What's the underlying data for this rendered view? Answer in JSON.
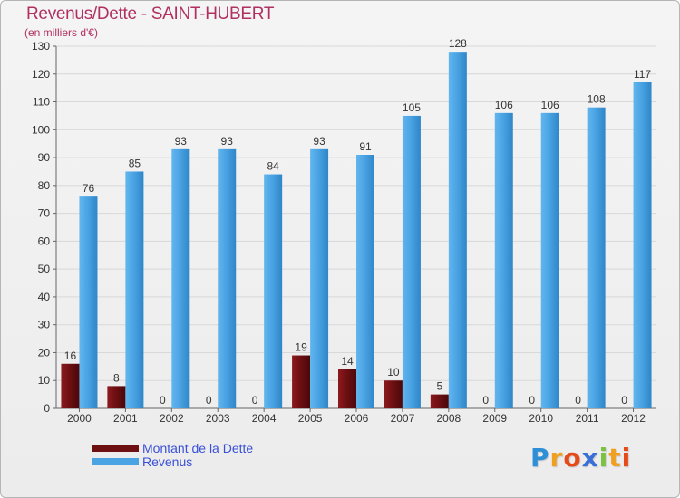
{
  "colors": {
    "title": "#b03060",
    "legend_text": "#3a50d8",
    "dette": "#6e0f12",
    "revenus": "#4aa3e3"
  },
  "chart_data": {
    "type": "bar",
    "title": "Revenus/Dette - SAINT-HUBERT",
    "subtitle": "(en milliers d'€)",
    "categories": [
      "2000",
      "2001",
      "2002",
      "2003",
      "2004",
      "2005",
      "2006",
      "2007",
      "2008",
      "2009",
      "2010",
      "2011",
      "2012"
    ],
    "series": [
      {
        "name": "Montant de la Dette",
        "color": "#6e0f12",
        "values": [
          16,
          8,
          0,
          0,
          0,
          19,
          14,
          10,
          5,
          0,
          0,
          0,
          0
        ],
        "labels": [
          "16",
          "8",
          "0",
          "0",
          "0",
          "19",
          "14",
          "10",
          "5",
          "0",
          "0",
          "0",
          "0"
        ]
      },
      {
        "name": "Revenus",
        "color": "#4aa3e3",
        "values": [
          76,
          85,
          93,
          93,
          84,
          93,
          91,
          105,
          128,
          106,
          106,
          108,
          117
        ],
        "labels": [
          "76",
          "85",
          "93",
          "93",
          "84",
          "93",
          "91",
          "105",
          "128",
          "106",
          "106",
          "108",
          "117"
        ]
      }
    ],
    "ylim": [
      0,
      130
    ],
    "yticks": [
      "0",
      "10",
      "20",
      "30",
      "40",
      "50",
      "60",
      "70",
      "80",
      "90",
      "100",
      "110",
      "120",
      "130"
    ],
    "grid": true,
    "legend_position": "bottom-left"
  },
  "legend": {
    "dette_label": "Montant de la Dette",
    "revenus_label": "Revenus"
  },
  "brand": {
    "letters": [
      {
        "ch": "P",
        "color": "#2e8fd6"
      },
      {
        "ch": "r",
        "color": "#f0a020"
      },
      {
        "ch": "o",
        "color": "#e64a19"
      },
      {
        "ch": "x",
        "color": "#3a6fd8"
      },
      {
        "ch": "i",
        "color": "#7cc142"
      },
      {
        "ch": "t",
        "color": "#f0a020"
      },
      {
        "ch": "i",
        "color": "#e64a19"
      }
    ]
  }
}
